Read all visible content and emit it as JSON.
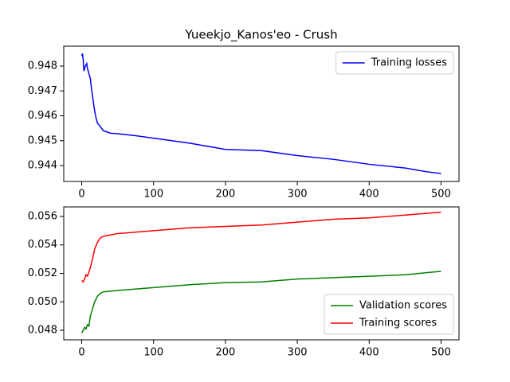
{
  "chart_data": [
    {
      "type": "line",
      "title": "Yueekjo_Kanos'eo - Crush",
      "x": [
        0,
        1,
        2,
        3,
        5,
        7,
        8,
        10,
        12,
        14,
        16,
        18,
        20,
        22,
        25,
        30,
        40,
        50,
        75,
        100,
        150,
        200,
        250,
        300,
        350,
        400,
        450,
        480,
        500
      ],
      "series": [
        {
          "name": "Training losses",
          "color": "#0000ff",
          "values": [
            0.9484,
            0.9485,
            0.9483,
            0.9478,
            0.948,
            0.9481,
            0.9479,
            0.9477,
            0.9475,
            0.947,
            0.9466,
            0.9462,
            0.9459,
            0.9457,
            0.9456,
            0.9454,
            0.9453,
            0.94528,
            0.9452,
            0.9451,
            0.9449,
            0.94465,
            0.9446,
            0.9444,
            0.94425,
            0.94405,
            0.9439,
            0.94375,
            0.94368
          ]
        }
      ],
      "xlim": [
        -25,
        525
      ],
      "ylim": [
        0.94336,
        0.9488
      ],
      "xticks": [
        0,
        100,
        200,
        300,
        400,
        500
      ],
      "yticks": [
        0.944,
        0.945,
        0.946,
        0.947,
        0.948
      ],
      "legend": "upper right"
    },
    {
      "type": "line",
      "x": [
        0,
        2,
        4,
        6,
        8,
        10,
        12,
        15,
        18,
        22,
        26,
        30,
        40,
        50,
        100,
        150,
        200,
        250,
        300,
        350,
        400,
        450,
        500
      ],
      "series": [
        {
          "name": "Validation scores",
          "color": "#008000",
          "values": [
            0.0478,
            0.048,
            0.0482,
            0.0481,
            0.0484,
            0.0483,
            0.049,
            0.0495,
            0.05,
            0.0504,
            0.0506,
            0.0507,
            0.05075,
            0.0508,
            0.051,
            0.0512,
            0.05135,
            0.0514,
            0.0516,
            0.0517,
            0.0518,
            0.0519,
            0.05215
          ]
        },
        {
          "name": "Training scores",
          "color": "#ff0000",
          "values": [
            0.0515,
            0.0514,
            0.0516,
            0.0519,
            0.0518,
            0.0521,
            0.0524,
            0.053,
            0.0537,
            0.0542,
            0.0545,
            0.0546,
            0.0547,
            0.0548,
            0.055,
            0.0552,
            0.0553,
            0.0554,
            0.0556,
            0.0558,
            0.0559,
            0.0561,
            0.0563
          ]
        }
      ],
      "xlim": [
        -25,
        525
      ],
      "ylim": [
        0.04733,
        0.05667
      ],
      "xticks": [
        0,
        100,
        200,
        300,
        400,
        500
      ],
      "yticks": [
        0.048,
        {
          "value": 0.05,
          "label": "0.050"
        },
        0.052,
        0.054,
        0.056
      ],
      "legend": "lower right"
    }
  ]
}
